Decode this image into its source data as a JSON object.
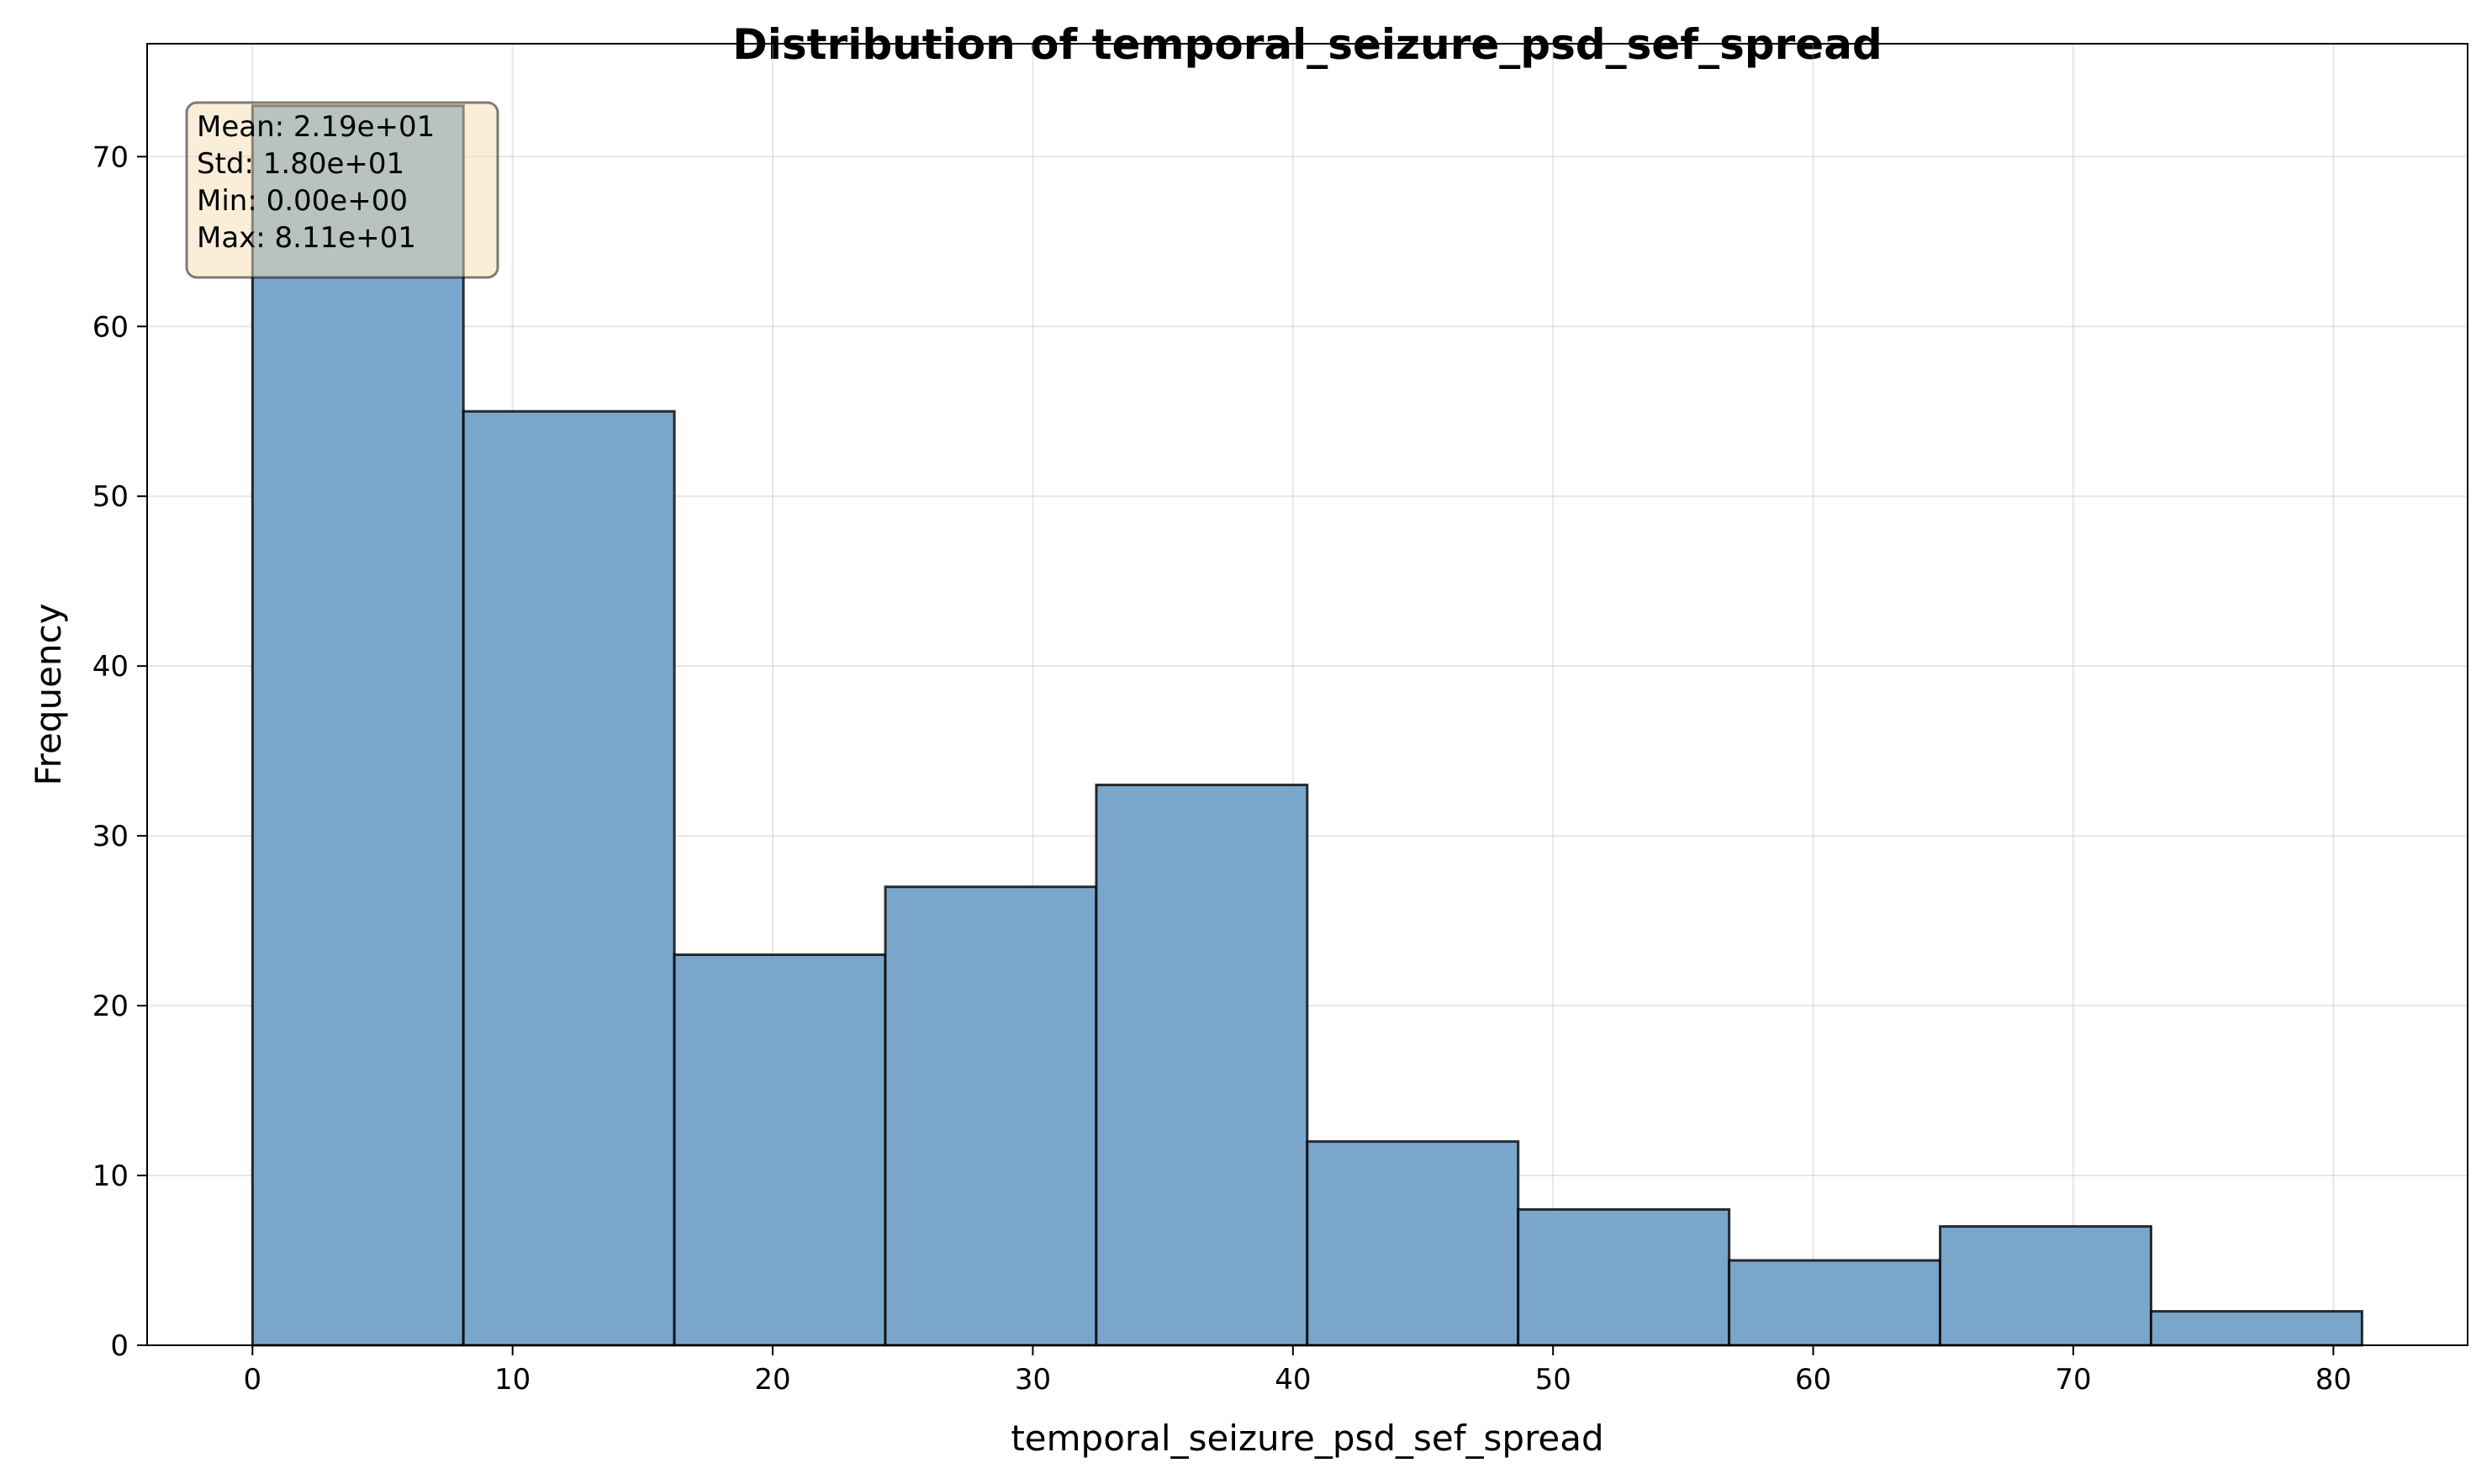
{
  "chart_data": {
    "type": "histogram",
    "title": "Distribution of temporal_seizure_psd_sef_spread",
    "xlabel": "temporal_seizure_psd_sef_spread",
    "ylabel": "Frequency",
    "xlim": [
      -4.05,
      85.16
    ],
    "ylim": [
      0,
      76.65
    ],
    "xticks": [
      0,
      10,
      20,
      30,
      40,
      50,
      60,
      70,
      80
    ],
    "yticks": [
      0,
      10,
      20,
      30,
      40,
      50,
      60,
      70
    ],
    "grid": true,
    "bar_color": "#7ba6cc",
    "bar_edge_color": "#000000",
    "bins": [
      {
        "x0": 0.0,
        "x1": 8.11,
        "count": 73
      },
      {
        "x0": 8.11,
        "x1": 16.22,
        "count": 55
      },
      {
        "x0": 16.22,
        "x1": 24.33,
        "count": 23
      },
      {
        "x0": 24.33,
        "x1": 32.44,
        "count": 27
      },
      {
        "x0": 32.44,
        "x1": 40.55,
        "count": 33
      },
      {
        "x0": 40.55,
        "x1": 48.66,
        "count": 12
      },
      {
        "x0": 48.66,
        "x1": 56.77,
        "count": 8
      },
      {
        "x0": 56.77,
        "x1": 64.88,
        "count": 5
      },
      {
        "x0": 64.88,
        "x1": 72.99,
        "count": 7
      },
      {
        "x0": 72.99,
        "x1": 81.1,
        "count": 2
      }
    ],
    "stats_box": {
      "placement": "top-left",
      "background": "#f5deb3",
      "lines": [
        "Mean: 2.19e+01",
        "Std: 1.80e+01",
        "Min: 0.00e+00",
        "Max: 8.11e+01"
      ]
    }
  }
}
